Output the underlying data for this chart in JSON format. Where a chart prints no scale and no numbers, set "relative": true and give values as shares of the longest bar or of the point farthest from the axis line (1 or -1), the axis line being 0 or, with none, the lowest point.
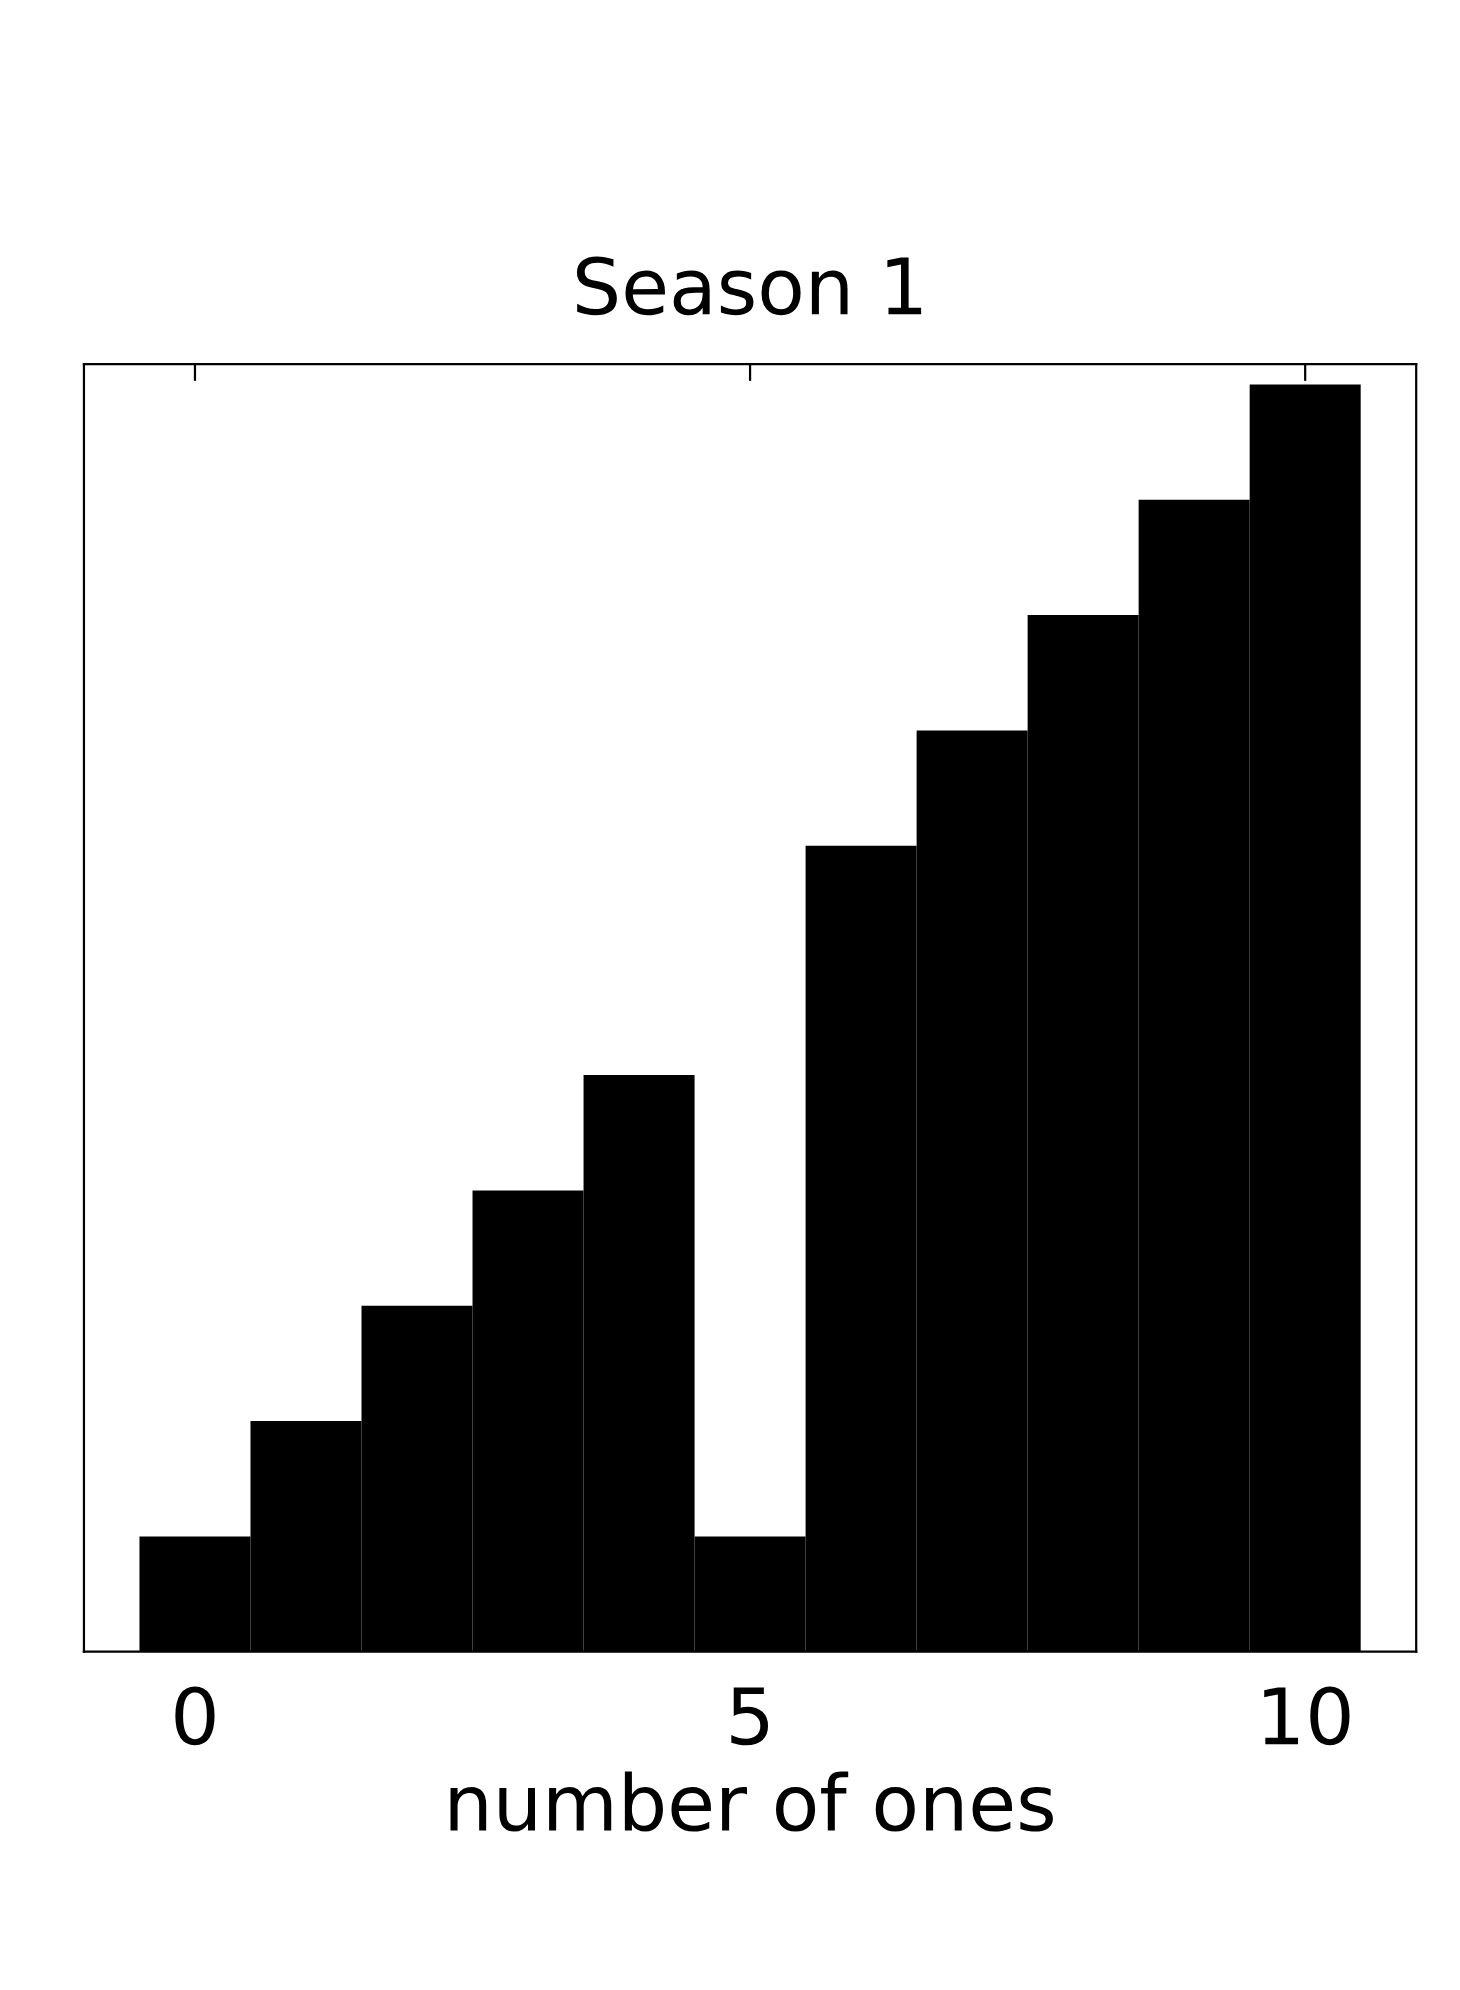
{
  "chart_data": {
    "type": "bar",
    "title": "Season 1",
    "xlabel": "number of ones",
    "x": [
      0,
      1,
      2,
      3,
      4,
      5,
      6,
      7,
      8,
      9,
      10
    ],
    "values": [
      0.091,
      0.182,
      0.273,
      0.364,
      0.455,
      0.091,
      0.636,
      0.727,
      0.818,
      0.909,
      1
    ],
    "color": "#000000",
    "relative": true,
    "xlim": [
      -1,
      11
    ],
    "xticks": [
      0,
      5,
      10
    ],
    "grid": false
  }
}
